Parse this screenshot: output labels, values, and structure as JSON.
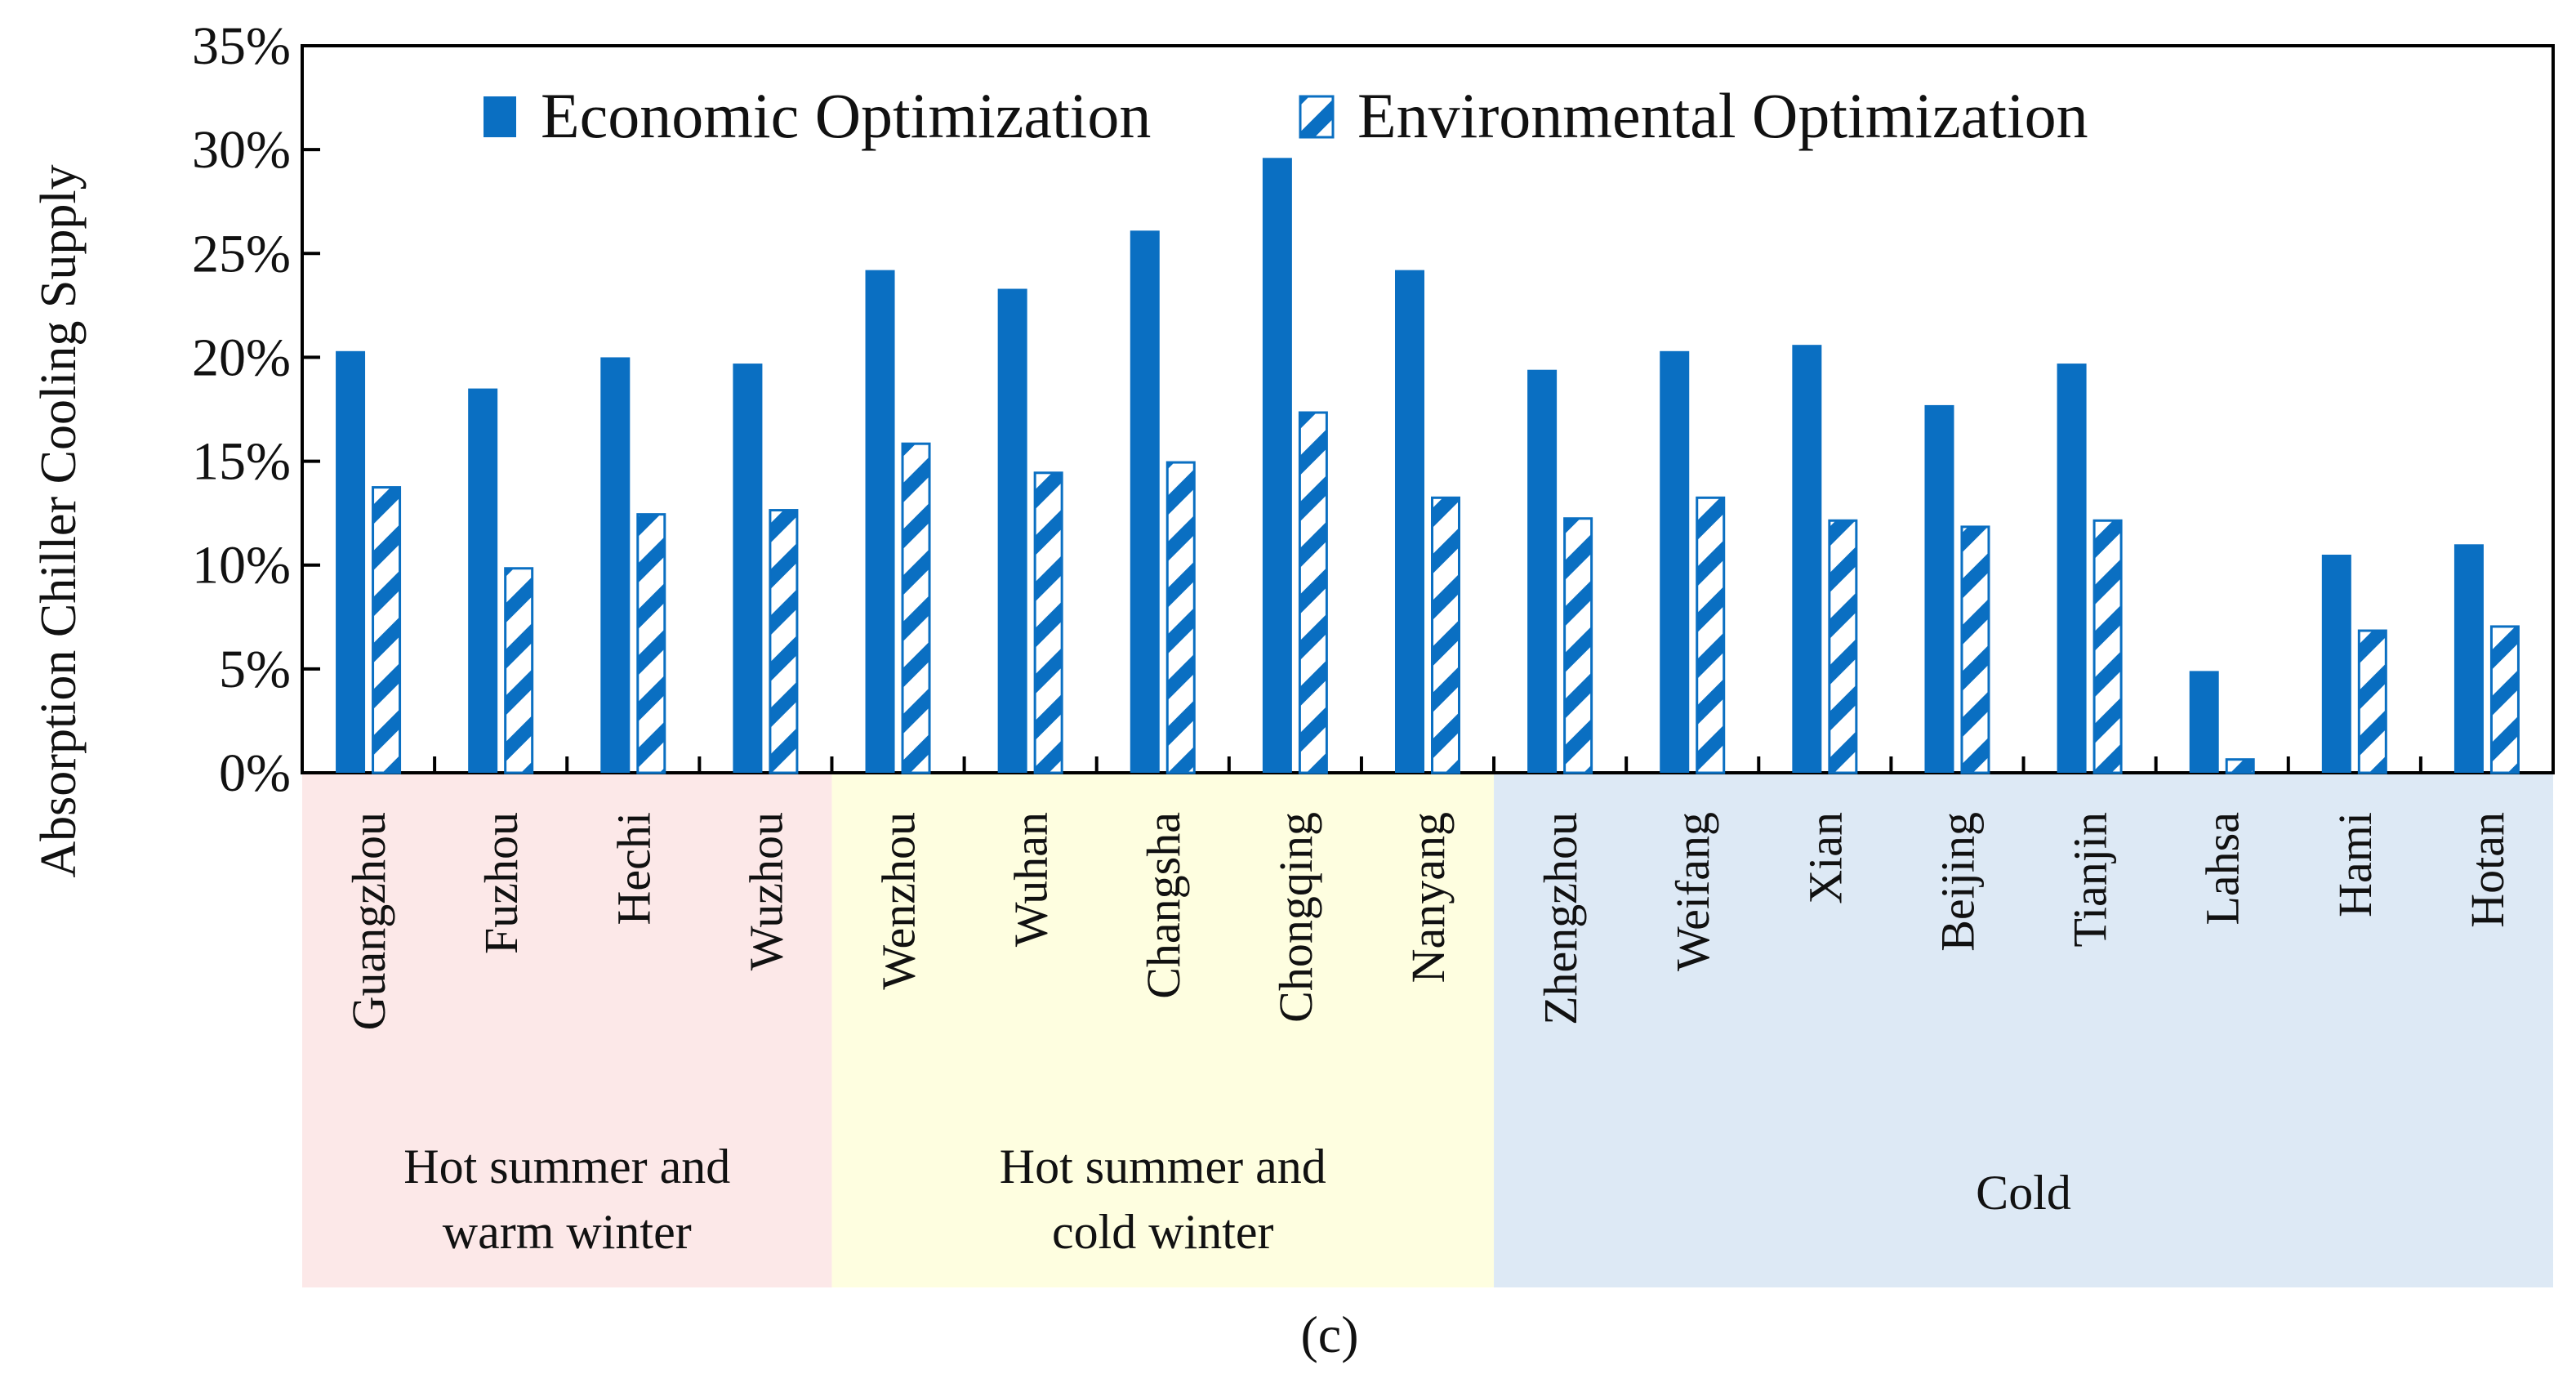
{
  "chart_data": {
    "type": "bar",
    "title": "",
    "xlabel": "",
    "ylabel": "Absorption Chiller Cooling Supply",
    "ylim": [
      0,
      35
    ],
    "yticks": [
      0,
      5,
      10,
      15,
      20,
      25,
      30,
      35
    ],
    "ytick_labels": [
      "0%",
      "5%",
      "10%",
      "15%",
      "20%",
      "25%",
      "30%",
      "35%"
    ],
    "grid": false,
    "legend_position": "top",
    "categories": [
      "Guangzhou",
      "Fuzhou",
      "Hechi",
      "Wuzhou",
      "Wenzhou",
      "Wuhan",
      "Changsha",
      "Chongqing",
      "Nanyang",
      "Zhengzhou",
      "Weifang",
      "Xian",
      "Beijing",
      "Tianjin",
      "Lahsa",
      "Hami",
      "Hotan"
    ],
    "series": [
      {
        "name": "Economic Optimization",
        "style": "solid",
        "values": [
          20.3,
          18.5,
          20.0,
          19.7,
          24.2,
          23.3,
          26.1,
          29.6,
          24.2,
          19.4,
          20.3,
          20.6,
          17.7,
          19.7,
          4.9,
          10.5,
          11.0
        ]
      },
      {
        "name": "Environmental Optimization",
        "style": "hatched",
        "values": [
          13.8,
          9.9,
          12.5,
          12.7,
          15.9,
          14.5,
          15.0,
          17.4,
          13.3,
          12.3,
          13.3,
          12.2,
          11.9,
          12.2,
          0.7,
          6.9,
          7.1
        ]
      }
    ],
    "zones": [
      {
        "label_lines": [
          "Hot summer and",
          "warm winter"
        ],
        "start": 0,
        "end": 3,
        "color": "#fce8e8"
      },
      {
        "label_lines": [
          "Hot summer and",
          "cold winter"
        ],
        "start": 4,
        "end": 8,
        "color": "#fefee0"
      },
      {
        "label_lines": [
          "Cold"
        ],
        "start": 9,
        "end": 16,
        "color": "#dde9f5"
      }
    ],
    "panel_label": "(c)",
    "bar_color": "#0a6fc2"
  }
}
